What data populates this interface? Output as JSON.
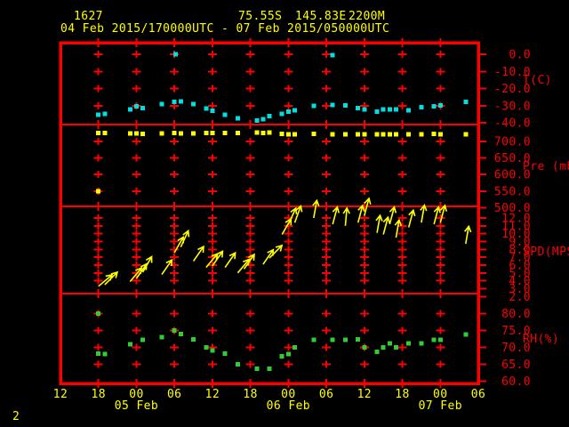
{
  "header": {
    "station_id": "1627",
    "latitude": "75.55S",
    "longitude": "145.83E",
    "elevation": "2200M",
    "time_range": "04 Feb 2015/170000UTC - 07 Feb 2015/050000UTC"
  },
  "page_number": "2",
  "colors": {
    "background": "#000000",
    "grid": "#fb0000",
    "axis_text": "#fb0000",
    "header_text": "#ffff00",
    "temperature_marker": "#00dede",
    "pressure_marker": "#ffff00",
    "wind_marker": "#ffff00",
    "humidity_marker": "#32cd32"
  },
  "chart_data": {
    "type": "scatter",
    "subtype": "multi-panel-timeseries",
    "title": "1627  75.55S 145.83E 2200M  04 Feb 2015/170000UTC - 07 Feb 2015/050000UTC",
    "x_axis": {
      "span_hours": 66,
      "hour_ticks": [
        {
          "h": 0,
          "label": "12"
        },
        {
          "h": 6,
          "label": "18"
        },
        {
          "h": 12,
          "label": "00"
        },
        {
          "h": 18,
          "label": "06"
        },
        {
          "h": 24,
          "label": "12"
        },
        {
          "h": 30,
          "label": "18"
        },
        {
          "h": 36,
          "label": "00"
        },
        {
          "h": 42,
          "label": "06"
        },
        {
          "h": 48,
          "label": "12"
        },
        {
          "h": 54,
          "label": "18"
        },
        {
          "h": 60,
          "label": "00"
        },
        {
          "h": 66,
          "label": "06"
        }
      ],
      "date_ticks": [
        {
          "h": 12,
          "label": "05 Feb"
        },
        {
          "h": 36,
          "label": "06 Feb"
        },
        {
          "h": 60,
          "label": "07 Feb"
        }
      ]
    },
    "panels": [
      {
        "id": "temperature",
        "axis_label": "T(C)",
        "style": "square",
        "marker_color": "#00dede",
        "yticks": [
          "0.0",
          "-10.0",
          "-20.0",
          "-30.0",
          "-40.0"
        ],
        "points": [
          [
            6,
            -35.3
          ],
          [
            7,
            -34.8
          ],
          [
            11,
            -32.2
          ],
          [
            12,
            -30.5
          ],
          [
            13,
            -31.3
          ],
          [
            16,
            -29.2
          ],
          [
            18,
            -27.9
          ],
          [
            18.2,
            0.0
          ],
          [
            19,
            -27.5
          ],
          [
            21,
            -29.1
          ],
          [
            23,
            -31.7
          ],
          [
            24,
            -33.1
          ],
          [
            26,
            -35.3
          ],
          [
            28,
            -37.4
          ],
          [
            31,
            -38.6
          ],
          [
            32,
            -37.9
          ],
          [
            33,
            -36.0
          ],
          [
            35,
            -34.8
          ],
          [
            36,
            -33.4
          ],
          [
            37,
            -32.6
          ],
          [
            40,
            -30.0
          ],
          [
            43,
            -0.5
          ],
          [
            43,
            -29.6
          ],
          [
            45,
            -29.8
          ],
          [
            47,
            -31.3
          ],
          [
            48,
            -32.2
          ],
          [
            50,
            -33.4
          ],
          [
            51,
            -32.2
          ],
          [
            52,
            -32.2
          ],
          [
            53,
            -32.2
          ],
          [
            55,
            -32.7
          ],
          [
            57,
            -31.0
          ],
          [
            59,
            -30.5
          ],
          [
            60,
            -29.8
          ],
          [
            64,
            -27.9
          ]
        ]
      },
      {
        "id": "pressure",
        "axis_label": "Pre (mb)",
        "style": "square",
        "marker_color": "#ffff00",
        "yticks": [
          "700.0",
          "650.0",
          "600.0",
          "550.0",
          "500.0"
        ],
        "points": [
          [
            6,
            550
          ],
          [
            6,
            726
          ],
          [
            7,
            726
          ],
          [
            11,
            724
          ],
          [
            12,
            724
          ],
          [
            13,
            723
          ],
          [
            16,
            724
          ],
          [
            18,
            725
          ],
          [
            19,
            724
          ],
          [
            21,
            724
          ],
          [
            23,
            726
          ],
          [
            24,
            726
          ],
          [
            26,
            725
          ],
          [
            28,
            726
          ],
          [
            31,
            727
          ],
          [
            32,
            726
          ],
          [
            33,
            727
          ],
          [
            35,
            723
          ],
          [
            36,
            722
          ],
          [
            37,
            722
          ],
          [
            40,
            723
          ],
          [
            43,
            722
          ],
          [
            45,
            721
          ],
          [
            47,
            721
          ],
          [
            48,
            721
          ],
          [
            50,
            722
          ],
          [
            51,
            721
          ],
          [
            52,
            722
          ],
          [
            53,
            721
          ],
          [
            55,
            722
          ],
          [
            57,
            721
          ],
          [
            59,
            723
          ],
          [
            60,
            721
          ],
          [
            64,
            722
          ]
        ]
      },
      {
        "id": "wind_speed",
        "axis_label": "SPD(MPS)",
        "style": "arrow",
        "marker_color": "#ffff00",
        "yticks": [
          "12.0",
          "11.0",
          "10.0",
          "9.0",
          "8.0",
          "7.0",
          "6.0",
          "5.0",
          "4.0",
          "3.0",
          "2.0"
        ],
        "points": [
          [
            6,
            3.3,
            50
          ],
          [
            7,
            3.5,
            45
          ],
          [
            11,
            3.9,
            40
          ],
          [
            12,
            4.3,
            35
          ],
          [
            13,
            5.1,
            30
          ],
          [
            16,
            4.8,
            35
          ],
          [
            18,
            7.6,
            30
          ],
          [
            19,
            8.3,
            25
          ],
          [
            21,
            6.5,
            35
          ],
          [
            23,
            5.7,
            40
          ],
          [
            24,
            5.9,
            35
          ],
          [
            26,
            5.7,
            35
          ],
          [
            28,
            5.0,
            40
          ],
          [
            29,
            5.5,
            35
          ],
          [
            32,
            6.1,
            35
          ],
          [
            33,
            6.9,
            45
          ],
          [
            35,
            9.9,
            30
          ],
          [
            36,
            11.2,
            25
          ],
          [
            37,
            11.4,
            20
          ],
          [
            40,
            12.0,
            10
          ],
          [
            43,
            11.2,
            15
          ],
          [
            45,
            11.0,
            5
          ],
          [
            47,
            11.4,
            15
          ],
          [
            48,
            12.3,
            15
          ],
          [
            50,
            10.1,
            10
          ],
          [
            51,
            9.9,
            15
          ],
          [
            52,
            11.2,
            15
          ],
          [
            53,
            9.5,
            10
          ],
          [
            55,
            10.8,
            15
          ],
          [
            57,
            11.4,
            10
          ],
          [
            59,
            11.2,
            15
          ],
          [
            60,
            11.4,
            15
          ],
          [
            64,
            8.7,
            10
          ]
        ]
      },
      {
        "id": "relative_humidity",
        "axis_label": "RH(%)",
        "style": "square",
        "marker_color": "#32cd32",
        "yticks": [
          "80.0",
          "75.0",
          "70.0",
          "65.0",
          "60.0"
        ],
        "points": [
          [
            6,
            80.0
          ],
          [
            6,
            68.1
          ],
          [
            7,
            68.0
          ],
          [
            11,
            70.9
          ],
          [
            13,
            72.2
          ],
          [
            16,
            73.1
          ],
          [
            18,
            75.0
          ],
          [
            19,
            74.0
          ],
          [
            21,
            72.4
          ],
          [
            23,
            70.0
          ],
          [
            24,
            69.1
          ],
          [
            26,
            68.1
          ],
          [
            28,
            65.0
          ],
          [
            31,
            63.7
          ],
          [
            33,
            63.6
          ],
          [
            35,
            67.4
          ],
          [
            36,
            68.0
          ],
          [
            37,
            70.0
          ],
          [
            40,
            72.2
          ],
          [
            43,
            72.2
          ],
          [
            45,
            72.2
          ],
          [
            47,
            72.4
          ],
          [
            48,
            70.0
          ],
          [
            50,
            68.7
          ],
          [
            51,
            70.0
          ],
          [
            52,
            71.2
          ],
          [
            53,
            70.0
          ],
          [
            55,
            71.2
          ],
          [
            57,
            71.2
          ],
          [
            59,
            72.2
          ],
          [
            60,
            72.2
          ],
          [
            64,
            73.9
          ]
        ]
      }
    ]
  }
}
